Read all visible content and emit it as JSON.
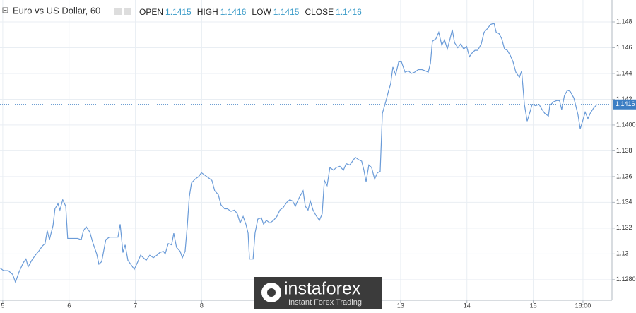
{
  "chart_data": {
    "type": "line",
    "title": "Euro vs US Dollar, 60",
    "ohlc": [
      {
        "label": "OPEN",
        "value": 1.1415
      },
      {
        "label": "HIGH",
        "value": 1.1416
      },
      {
        "label": "LOW",
        "value": 1.1415
      },
      {
        "label": "CLOSE",
        "value": 1.1416
      }
    ],
    "last_price": 1.1416,
    "brand": "instaforex",
    "tagline": "Instant Forex Trading",
    "color": "#6a9bd8",
    "grid": true,
    "xlim": [
      -1.0,
      220.5
    ],
    "ylim": [
      1.1264,
      1.1497
    ],
    "xticks": [
      {
        "value": 0,
        "label": "5"
      },
      {
        "value": 24,
        "label": "6"
      },
      {
        "value": 48,
        "label": "7"
      },
      {
        "value": 72,
        "label": "8"
      },
      {
        "value": 144,
        "label": "13"
      },
      {
        "value": 168,
        "label": "14"
      },
      {
        "value": 192,
        "label": "15"
      },
      {
        "value": 210,
        "label": "18:00"
      }
    ],
    "yticks": [
      {
        "value": 1.128,
        "label": "1.1280"
      },
      1.13,
      1.132,
      1.134,
      1.136,
      1.138,
      {
        "value": 1.14,
        "label": "1.1400"
      },
      1.142,
      1.144,
      1.146,
      1.148
    ],
    "x": [
      -1.0,
      0.3,
      2.0,
      3.6,
      4.6,
      5.9,
      7.4,
      8.4,
      9.2,
      10.5,
      11.8,
      13.0,
      14.3,
      15.3,
      16.1,
      16.9,
      18.2,
      18.9,
      20.0,
      20.7,
      21.7,
      22.8,
      23.5,
      24.6,
      27.1,
      28.4,
      29.2,
      30.2,
      31.5,
      32.7,
      34.0,
      34.8,
      35.8,
      37.3,
      38.6,
      40.4,
      41.7,
      42.5,
      43.5,
      44.3,
      45.3,
      46.3,
      47.6,
      48.9,
      49.9,
      50.9,
      51.9,
      53.2,
      54.5,
      55.8,
      56.8,
      58.1,
      58.8,
      59.9,
      61.1,
      61.9,
      62.9,
      64.2,
      65.0,
      66.0,
      66.8,
      67.5,
      68.3,
      69.6,
      70.9,
      71.9,
      73.2,
      74.5,
      75.7,
      76.7,
      78.0,
      79.0,
      80.3,
      81.3,
      82.6,
      83.9,
      84.9,
      85.9,
      87.0,
      88.0,
      88.8,
      89.3,
      90.6,
      91.3,
      92.3,
      93.6,
      94.4,
      95.4,
      96.7,
      98.0,
      99.2,
      100.3,
      101.5,
      102.8,
      103.9,
      104.9,
      105.9,
      106.9,
      107.9,
      108.7,
      109.5,
      110.5,
      111.3,
      112.3,
      113.3,
      114.6,
      115.6,
      116.4,
      117.4,
      118.4,
      119.7,
      120.7,
      122.0,
      123.3,
      124.3,
      125.6,
      126.6,
      127.6,
      128.9,
      129.9,
      130.7,
      131.5,
      132.5,
      133.5,
      134.6,
      135.6,
      136.6,
      137.4,
      138.6,
      139.7,
      140.4,
      141.2,
      142.2,
      143.3,
      144.3,
      145.6,
      146.8,
      147.9,
      149.1,
      150.4,
      151.7,
      153.0,
      154.0,
      154.8,
      155.5,
      156.8,
      157.8,
      158.9,
      159.9,
      160.9,
      161.9,
      162.7,
      163.5,
      164.7,
      165.8,
      166.8,
      167.9,
      168.9,
      169.9,
      170.9,
      171.9,
      173.2,
      174.2,
      175.5,
      176.5,
      177.8,
      178.6,
      179.6,
      180.6,
      181.6,
      182.6,
      183.7,
      184.7,
      185.7,
      187.0,
      187.8,
      188.8,
      189.8,
      190.8,
      191.6,
      192.9,
      194.1,
      195.2,
      196.2,
      197.5,
      198.0,
      199.3,
      200.5,
      201.5,
      202.3,
      203.3,
      204.4,
      205.4,
      206.7,
      207.4,
      208.2,
      209.0,
      210.0,
      210.8,
      211.8,
      212.6,
      213.8,
      215.1
    ],
    "values": [
      1.1289,
      1.1287,
      1.1287,
      1.1284,
      1.1278,
      1.1286,
      1.1293,
      1.1296,
      1.129,
      1.1295,
      1.1299,
      1.1302,
      1.1306,
      1.1308,
      1.1318,
      1.1311,
      1.1322,
      1.1335,
      1.1339,
      1.1334,
      1.1342,
      1.1337,
      1.1312,
      1.1312,
      1.1312,
      1.1311,
      1.1318,
      1.1321,
      1.1317,
      1.1308,
      1.13,
      1.1292,
      1.1294,
      1.1311,
      1.1313,
      1.1313,
      1.1313,
      1.1323,
      1.1301,
      1.1307,
      1.1295,
      1.1292,
      1.1288,
      1.1294,
      1.1299,
      1.1297,
      1.1295,
      1.1299,
      1.1297,
      1.1299,
      1.1301,
      1.1302,
      1.13,
      1.1308,
      1.1307,
      1.1316,
      1.1305,
      1.1302,
      1.1297,
      1.1302,
      1.1322,
      1.1344,
      1.1355,
      1.1358,
      1.136,
      1.1363,
      1.1361,
      1.1359,
      1.1357,
      1.1349,
      1.1346,
      1.1338,
      1.1335,
      1.1335,
      1.1333,
      1.1334,
      1.1331,
      1.1324,
      1.1329,
      1.1323,
      1.1316,
      1.1296,
      1.1296,
      1.1316,
      1.1327,
      1.1328,
      1.1323,
      1.1326,
      1.1324,
      1.1326,
      1.1329,
      1.1334,
      1.1336,
      1.134,
      1.1342,
      1.1341,
      1.1337,
      1.1342,
      1.1346,
      1.1349,
      1.1337,
      1.1334,
      1.1341,
      1.1334,
      1.133,
      1.1326,
      1.1331,
      1.1357,
      1.1353,
      1.1367,
      1.1365,
      1.1367,
      1.1368,
      1.1365,
      1.137,
      1.1369,
      1.1372,
      1.1375,
      1.1373,
      1.1372,
      1.1365,
      1.1356,
      1.1369,
      1.1367,
      1.1358,
      1.1363,
      1.1364,
      1.1409,
      1.1418,
      1.1427,
      1.1432,
      1.1445,
      1.1439,
      1.1449,
      1.1449,
      1.1441,
      1.1442,
      1.144,
      1.1441,
      1.1443,
      1.1443,
      1.1442,
      1.1441,
      1.1448,
      1.1465,
      1.1467,
      1.1472,
      1.1462,
      1.1466,
      1.1459,
      1.1467,
      1.1474,
      1.1464,
      1.146,
      1.1463,
      1.1459,
      1.1461,
      1.1453,
      1.1456,
      1.1458,
      1.1458,
      1.1463,
      1.1472,
      1.1475,
      1.1478,
      1.1479,
      1.1472,
      1.1471,
      1.1467,
      1.1459,
      1.1458,
      1.1454,
      1.1449,
      1.1441,
      1.1437,
      1.1442,
      1.1416,
      1.1403,
      1.141,
      1.1416,
      1.1415,
      1.1416,
      1.1412,
      1.1409,
      1.1407,
      1.1415,
      1.1418,
      1.1419,
      1.1419,
      1.1412,
      1.1423,
      1.1427,
      1.1426,
      1.1421,
      1.1415,
      1.1408,
      1.1397,
      1.1404,
      1.141,
      1.1405,
      1.1409,
      1.1413,
      1.1416
    ]
  }
}
